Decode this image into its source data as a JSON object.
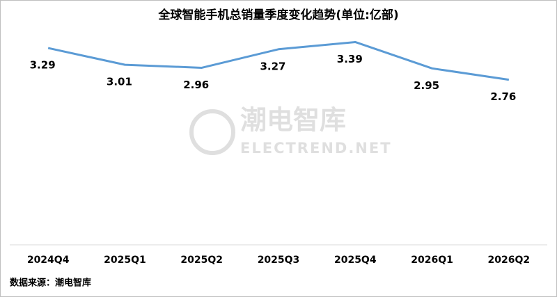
{
  "chart_data": {
    "type": "line",
    "title": "全球智能手机总销量季度变化趋势(单位:亿部)",
    "categories": [
      "2024Q4",
      "2025Q1",
      "2025Q2",
      "2025Q3",
      "2025Q4",
      "2026Q1",
      "2026Q2"
    ],
    "series": [
      {
        "name": "销量",
        "color": "#5b9bd5",
        "values": [
          3.29,
          3.01,
          2.96,
          3.27,
          3.39,
          2.95,
          2.76
        ]
      }
    ],
    "ylim": [
      0,
      4
    ],
    "source": "数据来源：潮电智库",
    "watermark": {
      "name": "潮电智库",
      "site": "ELECTREND.NET"
    }
  }
}
